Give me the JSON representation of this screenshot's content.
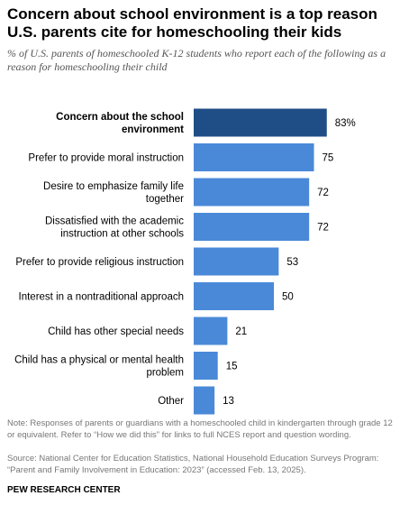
{
  "title": "Concern about school environment is a top reason U.S. parents cite for homeschooling their kids",
  "subtitle": "% of U.S. parents of homeschooled K-12 students who report each of the following as a reason for homeschooling their child",
  "note": "Note: Responses of parents or guardians with a homeschooled child in kindergarten through grade 12 or equivalent. Refer to “How we did this” for links to full NCES report and question wording.",
  "source": "Source: National Center for Education Statistics, National Household Education Surveys Program: “Parent and Family Involvement in Education: 2023” (accessed Feb. 13, 2025).",
  "footer": "PEW RESEARCH CENTER",
  "colors": {
    "highlight": "#1f4e86",
    "bar": "#4a89d8"
  },
  "chart_data": {
    "type": "bar",
    "orientation": "horizontal",
    "categories": [
      "Concern about the school environment",
      "Prefer to provide moral instruction",
      "Desire to emphasize family life together",
      "Dissatisfied with the academic instruction at other schools",
      "Prefer to provide religious instruction",
      "Interest in a nontraditional approach",
      "Child has other special needs",
      "Child has a physical or mental health problem",
      "Other"
    ],
    "label_lines": [
      [
        "Concern about the school",
        "environment"
      ],
      [
        "Prefer to provide moral instruction"
      ],
      [
        "Desire to emphasize family life",
        "together"
      ],
      [
        "Dissatisfied with the academic",
        "instruction at other schools"
      ],
      [
        "Prefer to provide religious instruction"
      ],
      [
        "Interest in a nontraditional approach"
      ],
      [
        "Child has other special needs"
      ],
      [
        "Child has a physical or mental health",
        "problem"
      ],
      [
        "Other"
      ]
    ],
    "values": [
      83,
      75,
      72,
      72,
      53,
      50,
      21,
      15,
      13
    ],
    "value_labels": [
      "83%",
      "75",
      "72",
      "72",
      "53",
      "50",
      "21",
      "15",
      "13"
    ],
    "highlight_index": 0,
    "xlim": [
      0,
      100
    ],
    "grid": false,
    "legend": "none"
  }
}
